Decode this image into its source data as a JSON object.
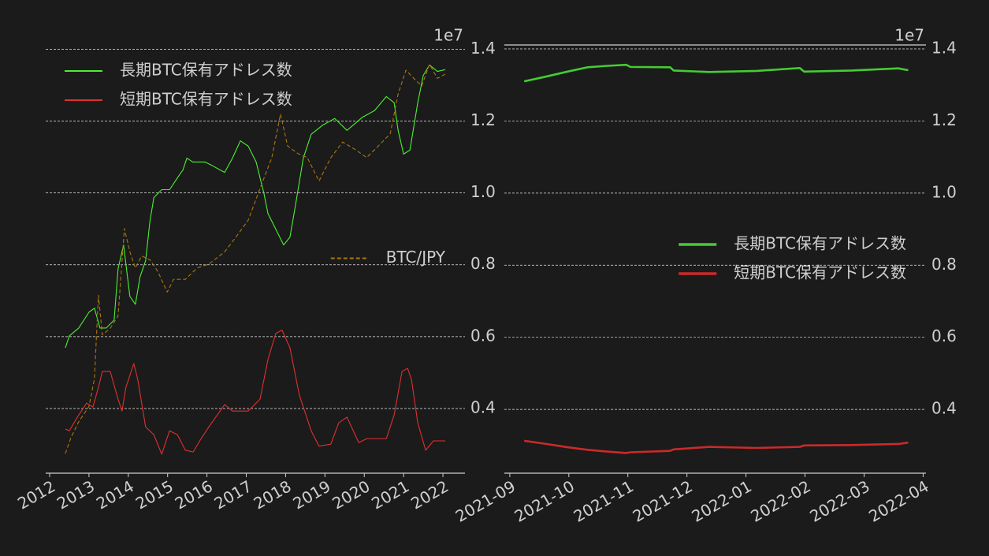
{
  "chart_data": [
    {
      "type": "line",
      "xlim": [
        2011.9,
        2022.56
      ],
      "xticks": [
        2012,
        2013,
        2014,
        2015,
        2016,
        2017,
        2018,
        2019,
        2020,
        2021,
        2022
      ],
      "ylim": [
        0.22,
        1.46
      ],
      "yticks": [
        0.4,
        0.6,
        0.8,
        {
          "value": 1,
          "label": "1.0"
        },
        1.2,
        1.4
      ],
      "y_offset_label": "1e7",
      "y2lim": [
        308,
        18600000
      ],
      "y2_log": true,
      "grid": true,
      "legend": "upper left",
      "legend2": "center right",
      "series": [
        {
          "name": "長期BTC保有アドレス数",
          "color": "#4cf033",
          "x": [
            2012.4,
            2012.5,
            2012.74,
            2013.0,
            2013.14,
            2013.28,
            2013.44,
            2013.64,
            2013.74,
            2013.88,
            2014.04,
            2014.18,
            2014.3,
            2014.44,
            2014.55,
            2014.65,
            2014.85,
            2015.05,
            2015.25,
            2015.39,
            2015.49,
            2015.64,
            2015.95,
            2016.15,
            2016.45,
            2016.65,
            2016.85,
            2017.05,
            2017.25,
            2017.45,
            2017.55,
            2017.75,
            2017.95,
            2018.11,
            2018.25,
            2018.45,
            2018.65,
            2018.95,
            2019.25,
            2019.56,
            2019.96,
            2020.26,
            2020.56,
            2020.76,
            2020.86,
            2021.0,
            2021.16,
            2021.36,
            2021.5,
            2021.66,
            2021.86,
            2022.06
          ],
          "values": [
            0.569,
            0.602,
            0.624,
            0.668,
            0.679,
            0.624,
            0.624,
            0.646,
            0.789,
            0.855,
            0.712,
            0.69,
            0.767,
            0.811,
            0.921,
            0.987,
            1.009,
            1.009,
            1.042,
            1.064,
            1.097,
            1.086,
            1.086,
            1.075,
            1.057,
            1.097,
            1.145,
            1.13,
            1.086,
            0.998,
            0.943,
            0.899,
            0.855,
            0.877,
            0.965,
            1.097,
            1.163,
            1.189,
            1.207,
            1.174,
            1.211,
            1.229,
            1.268,
            1.251,
            1.174,
            1.108,
            1.119,
            1.251,
            1.327,
            1.356,
            1.338,
            1.343
          ]
        },
        {
          "name": "短期BTC保有アドレス数",
          "color": "#e03030",
          "x": [
            2012.4,
            2012.5,
            2012.74,
            2012.94,
            2013.1,
            2013.24,
            2013.34,
            2013.54,
            2013.74,
            2013.84,
            2013.94,
            2014.14,
            2014.24,
            2014.44,
            2014.65,
            2014.85,
            2015.05,
            2015.25,
            2015.45,
            2015.65,
            2015.85,
            2016.05,
            2016.45,
            2016.65,
            2017.05,
            2017.35,
            2017.55,
            2017.75,
            2017.91,
            2018.11,
            2018.35,
            2018.65,
            2018.85,
            2019.15,
            2019.35,
            2019.56,
            2019.86,
            2020.06,
            2020.36,
            2020.56,
            2020.76,
            2020.96,
            2021.1,
            2021.2,
            2021.36,
            2021.56,
            2021.76,
            2022.06
          ],
          "values": [
            0.343,
            0.338,
            0.382,
            0.415,
            0.404,
            0.459,
            0.503,
            0.503,
            0.426,
            0.393,
            0.459,
            0.525,
            0.481,
            0.349,
            0.327,
            0.273,
            0.338,
            0.327,
            0.284,
            0.279,
            0.316,
            0.349,
            0.411,
            0.393,
            0.393,
            0.426,
            0.536,
            0.609,
            0.618,
            0.569,
            0.437,
            0.338,
            0.295,
            0.301,
            0.36,
            0.376,
            0.305,
            0.316,
            0.316,
            0.316,
            0.382,
            0.503,
            0.512,
            0.481,
            0.36,
            0.284,
            0.31,
            0.31
          ]
        },
        {
          "name": "BTC/JPY",
          "color": "#a8760f",
          "axis": "y2",
          "linestyle": "dashed",
          "x": [
            2012.4,
            2012.54,
            2012.74,
            2013.0,
            2013.14,
            2013.24,
            2013.34,
            2013.54,
            2013.74,
            2013.9,
            2014.04,
            2014.18,
            2014.34,
            2014.55,
            2014.75,
            2014.99,
            2015.15,
            2015.45,
            2015.75,
            2016.05,
            2016.45,
            2016.75,
            2017.05,
            2017.35,
            2017.65,
            2017.87,
            2018.05,
            2018.31,
            2018.55,
            2018.85,
            2019.15,
            2019.45,
            2019.76,
            2020.06,
            2020.36,
            2020.66,
            2020.86,
            2021.06,
            2021.26,
            2021.46,
            2021.66,
            2021.86,
            2022.06
          ],
          "values": [
            500,
            740,
            1100,
            1600,
            3200,
            25000,
            9400,
            11000,
            15000,
            130000,
            73000,
            49000,
            66000,
            60000,
            45000,
            27000,
            37000,
            37000,
            49000,
            54000,
            73000,
            107000,
            160000,
            350000,
            750000,
            2200000,
            1000000,
            830000,
            750000,
            420000,
            750000,
            1100000,
            920000,
            750000,
            1000000,
            1350000,
            3600000,
            6500000,
            5300000,
            4400000,
            7500000,
            5300000,
            5900000
          ]
        }
      ]
    },
    {
      "type": "line",
      "xlim": [
        2021.659,
        2022.254
      ],
      "xticks": [
        {
          "value": 2021.6667,
          "label": "2021-09"
        },
        {
          "value": 2021.75,
          "label": "2021-10"
        },
        {
          "value": 2021.8333,
          "label": "2021-11"
        },
        {
          "value": 2021.9167,
          "label": "2021-12"
        },
        {
          "value": 2022.0,
          "label": "2022-01"
        },
        {
          "value": 2022.0833,
          "label": "2022-02"
        },
        {
          "value": 2022.1667,
          "label": "2022-03"
        },
        {
          "value": 2022.25,
          "label": "2022-04"
        }
      ],
      "ylim": [
        0.223,
        1.411
      ],
      "yticks": [
        0.4,
        0.6,
        0.8,
        {
          "value": 1,
          "label": "1.0"
        },
        1.2,
        1.4
      ],
      "y_offset_label": "1e7",
      "grid": true,
      "legend": "center right",
      "series": [
        {
          "name": "長期BTC保有アドレス数",
          "color": "#44cc33",
          "x": [
            2021.687,
            2021.715,
            2021.748,
            2021.776,
            2021.804,
            2021.831,
            2021.837,
            2021.893,
            2021.898,
            2021.948,
            2022.015,
            2022.076,
            2022.082,
            2022.149,
            2022.215,
            2022.229
          ],
          "values": [
            1.31,
            1.322,
            1.337,
            1.349,
            1.353,
            1.356,
            1.35,
            1.349,
            1.34,
            1.336,
            1.339,
            1.347,
            1.337,
            1.34,
            1.346,
            1.341
          ]
        },
        {
          "name": "短期BTC保有アドレス数",
          "color": "#cc2a2a",
          "x": [
            2021.687,
            2021.715,
            2021.748,
            2021.776,
            2021.804,
            2021.831,
            2021.837,
            2021.893,
            2021.898,
            2021.948,
            2022.015,
            2022.076,
            2022.082,
            2022.149,
            2022.215,
            2022.229
          ],
          "values": [
            0.313,
            0.305,
            0.295,
            0.288,
            0.283,
            0.279,
            0.281,
            0.285,
            0.289,
            0.296,
            0.293,
            0.296,
            0.3,
            0.301,
            0.304,
            0.308
          ]
        }
      ]
    }
  ]
}
